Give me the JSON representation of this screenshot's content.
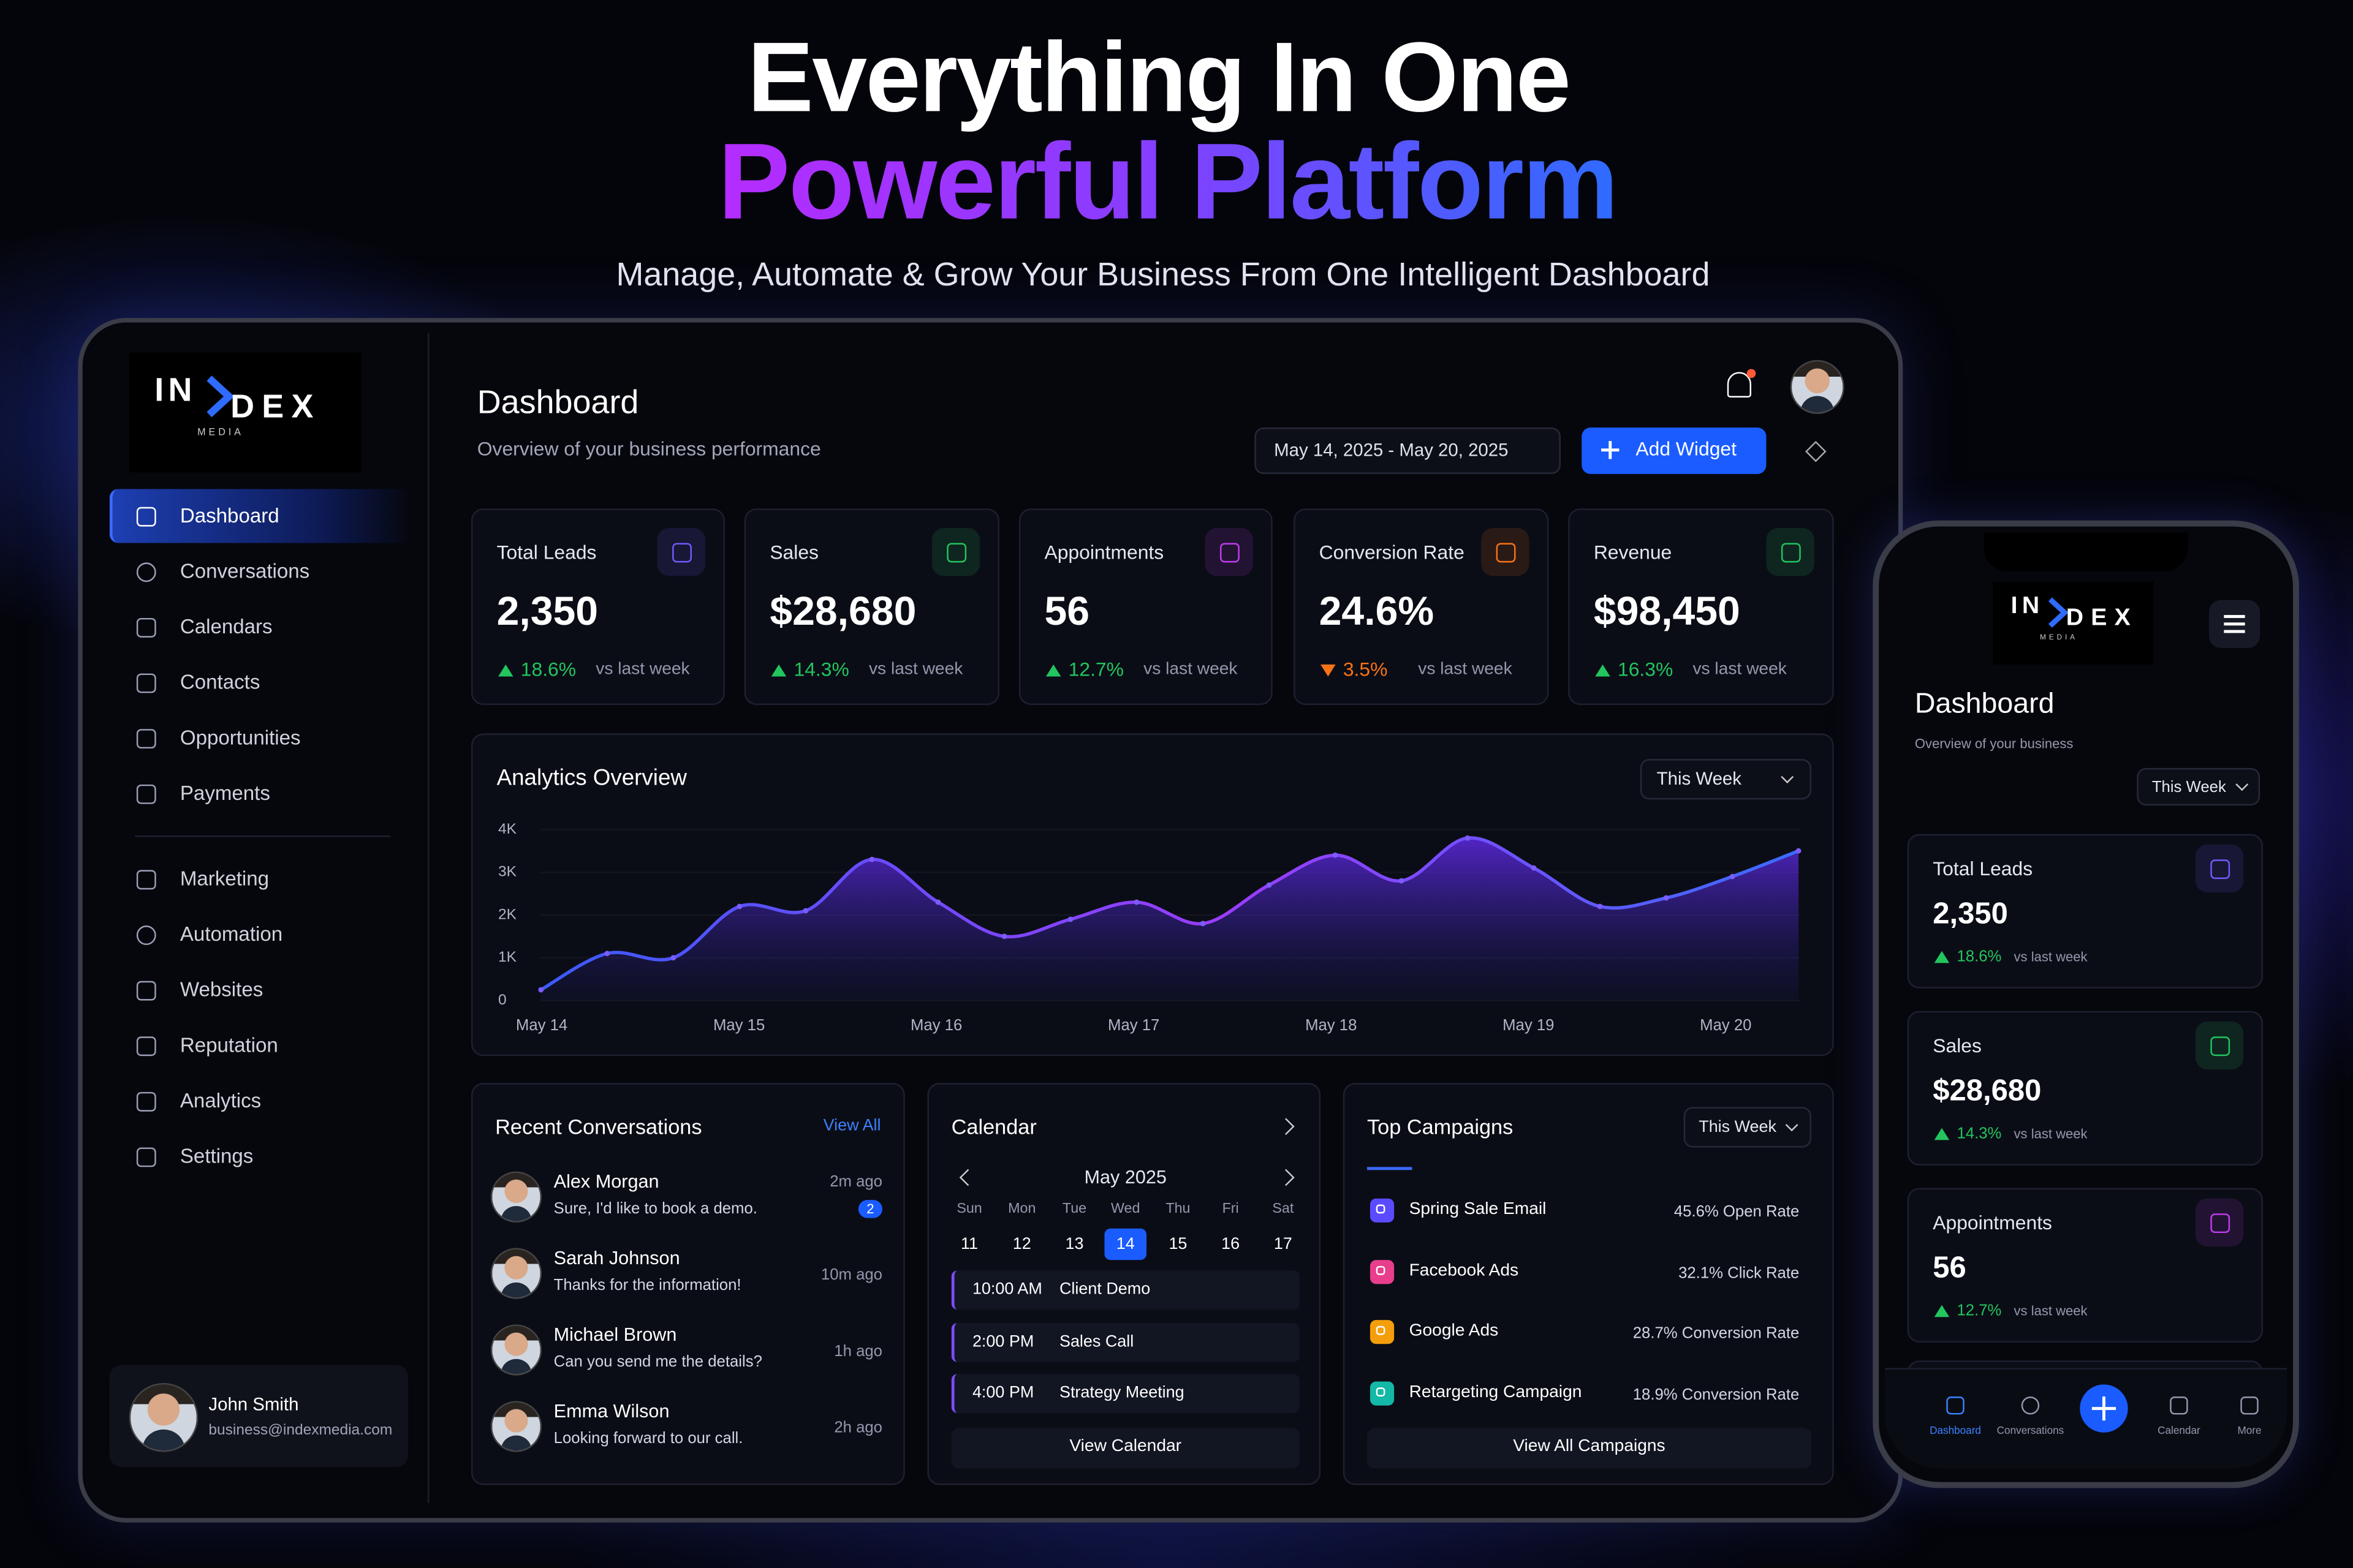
{
  "hero": {
    "title_line1": "Everything In One",
    "title_line2": "Powerful Platform",
    "subtitle": "Manage, Automate & Grow Your Business From One Intelligent Dashboard"
  },
  "sidebar": {
    "logo": {
      "left": "IN",
      "right": "DEX",
      "tagline": "MEDIA"
    },
    "nav": [
      {
        "label": "Dashboard",
        "active": true
      },
      {
        "label": "Conversations"
      },
      {
        "label": "Calendars"
      },
      {
        "label": "Contacts"
      },
      {
        "label": "Opportunities"
      },
      {
        "label": "Payments"
      }
    ],
    "nav_secondary": [
      {
        "label": "Marketing"
      },
      {
        "label": "Automation"
      },
      {
        "label": "Websites"
      },
      {
        "label": "Reputation"
      },
      {
        "label": "Analytics"
      },
      {
        "label": "Settings"
      }
    ],
    "user": {
      "name": "John Smith",
      "email": "business@indexmedia.com"
    }
  },
  "header": {
    "title": "Dashboard",
    "subtitle": "Overview of your business performance",
    "date_range": "May 14, 2025  -  May 20, 2025",
    "button": "Add Widget"
  },
  "kpis": [
    {
      "label": "Total Leads",
      "value": "2,350",
      "change": "18.6%",
      "trend": "up",
      "note": "vs last week",
      "color": "#6d5cff"
    },
    {
      "label": "Sales",
      "value": "$28,680",
      "change": "14.3%",
      "trend": "up",
      "note": "vs last week",
      "color": "#22c55e"
    },
    {
      "label": "Appointments",
      "value": "56",
      "change": "12.7%",
      "trend": "up",
      "note": "vs last week",
      "color": "#c03cf0"
    },
    {
      "label": "Conversion Rate",
      "value": "24.6%",
      "change": "3.5%",
      "trend": "down",
      "note": "vs last week",
      "color": "#f97316"
    },
    {
      "label": "Revenue",
      "value": "$98,450",
      "change": "16.3%",
      "trend": "up",
      "note": "vs last week",
      "color": "#22c55e"
    }
  ],
  "analytics": {
    "type": "area",
    "title": "Analytics Overview",
    "filter": "This Week",
    "categories": [
      "May 14",
      "May 15",
      "May 16",
      "May 17",
      "May 18",
      "May 19",
      "May 20"
    ],
    "values": [
      250,
      1100,
      1000,
      2200,
      2100,
      3300,
      2300,
      1500,
      1900,
      2300,
      1800,
      2700,
      3400,
      2800,
      3800,
      3100,
      2200,
      2400,
      2900,
      3500
    ],
    "ylim": [
      0,
      4000
    ],
    "yticks": [
      0,
      {
        "value": 1000,
        "label": "1K"
      },
      {
        "value": 2000,
        "label": "2K"
      },
      {
        "value": 3000,
        "label": "3K"
      },
      {
        "value": 4000,
        "label": "4K"
      }
    ],
    "grid": true
  },
  "conversations": {
    "title": "Recent Conversations",
    "link": "View All",
    "items": [
      {
        "name": "Alex Morgan",
        "message": "Sure, I'd like to book a demo.",
        "time": "2m ago",
        "badge": 2
      },
      {
        "name": "Sarah Johnson",
        "message": "Thanks for the information!",
        "time": "10m ago"
      },
      {
        "name": "Michael Brown",
        "message": "Can you send me the details?",
        "time": "1h ago"
      },
      {
        "name": "Emma Wilson",
        "message": "Looking forward to our call.",
        "time": "2h ago"
      }
    ]
  },
  "calendar": {
    "title": "Calendar",
    "month": "May 2025",
    "weekdays": [
      "Sun",
      "Mon",
      "Tue",
      "Wed",
      "Thu",
      "Fri",
      "Sat"
    ],
    "days": [
      11,
      12,
      13,
      14,
      15,
      16,
      17
    ],
    "selected_day": 14,
    "events": [
      {
        "time": "10:00 AM",
        "title": "Client Demo"
      },
      {
        "time": "2:00 PM",
        "title": "Sales Call"
      },
      {
        "time": "4:00 PM",
        "title": "Strategy Meeting"
      }
    ],
    "button": "View Calendar"
  },
  "campaigns": {
    "title": "Top Campaigns",
    "filter": "This Week",
    "items": [
      {
        "name": "Spring Sale Email",
        "metric": "45.6% Open Rate",
        "color": "#5b4bff"
      },
      {
        "name": "Facebook Ads",
        "metric": "32.1% Click Rate",
        "color": "#e83e8c"
      },
      {
        "name": "Google Ads",
        "metric": "28.7% Conversion Rate",
        "color": "#f59e0b"
      },
      {
        "name": "Retargeting Campaign",
        "metric": "18.9% Conversion Rate",
        "color": "#14b8a6"
      }
    ],
    "button": "View All Campaigns"
  },
  "mobile": {
    "title": "Dashboard",
    "subtitle": "Overview of your business",
    "filter": "This Week",
    "tabs": [
      "Dashboard",
      "Conversations",
      "Calendar",
      "More"
    ]
  }
}
